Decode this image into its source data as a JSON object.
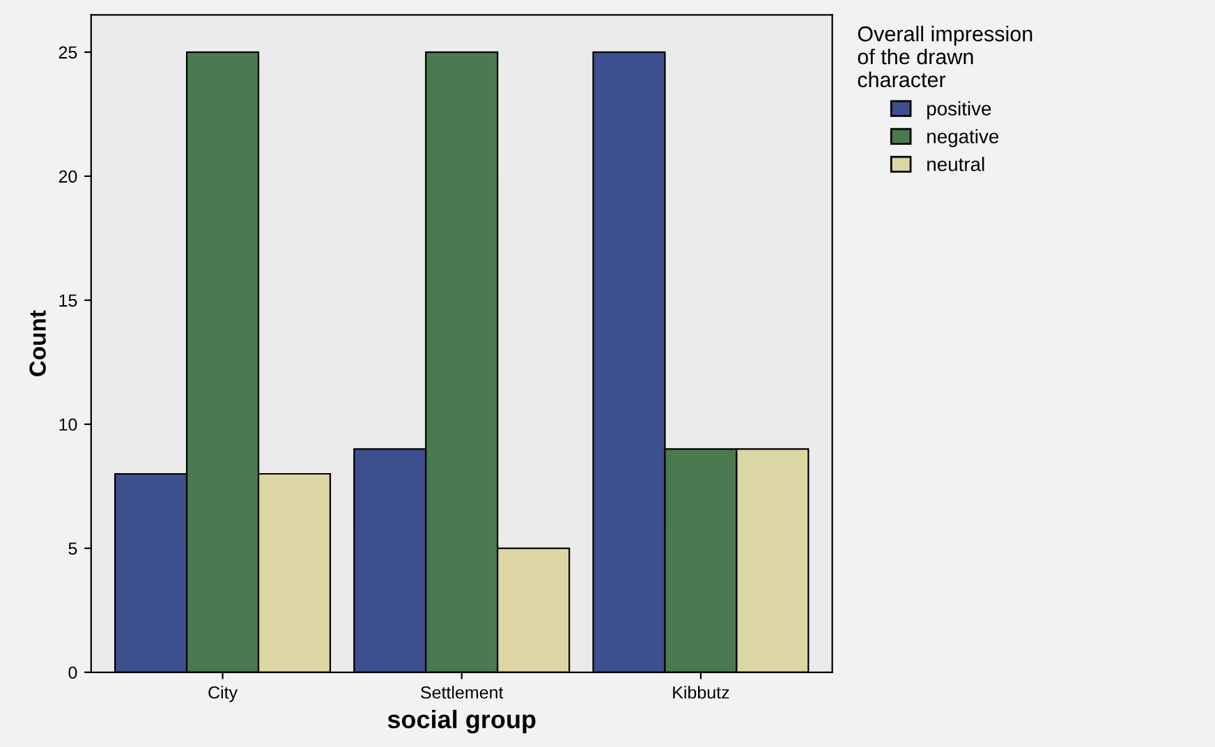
{
  "chart_data": {
    "type": "bar",
    "xlabel": "social group",
    "ylabel": "Count",
    "legend_title": "Overall impression of the drawn character",
    "categories": [
      "City",
      "Settlement",
      "Kibbutz"
    ],
    "series": [
      {
        "name": "positive",
        "color": "#3d4f8f",
        "values": [
          8,
          9,
          25
        ]
      },
      {
        "name": "negative",
        "color": "#4a7a4f",
        "values": [
          25,
          25,
          9
        ]
      },
      {
        "name": "neutral",
        "color": "#dcd6a4",
        "values": [
          8,
          5,
          9
        ]
      }
    ],
    "ylim": [
      0,
      26.5
    ],
    "yticks": [
      0,
      5,
      10,
      15,
      20,
      25
    ],
    "grid": false,
    "legend": "top right"
  }
}
